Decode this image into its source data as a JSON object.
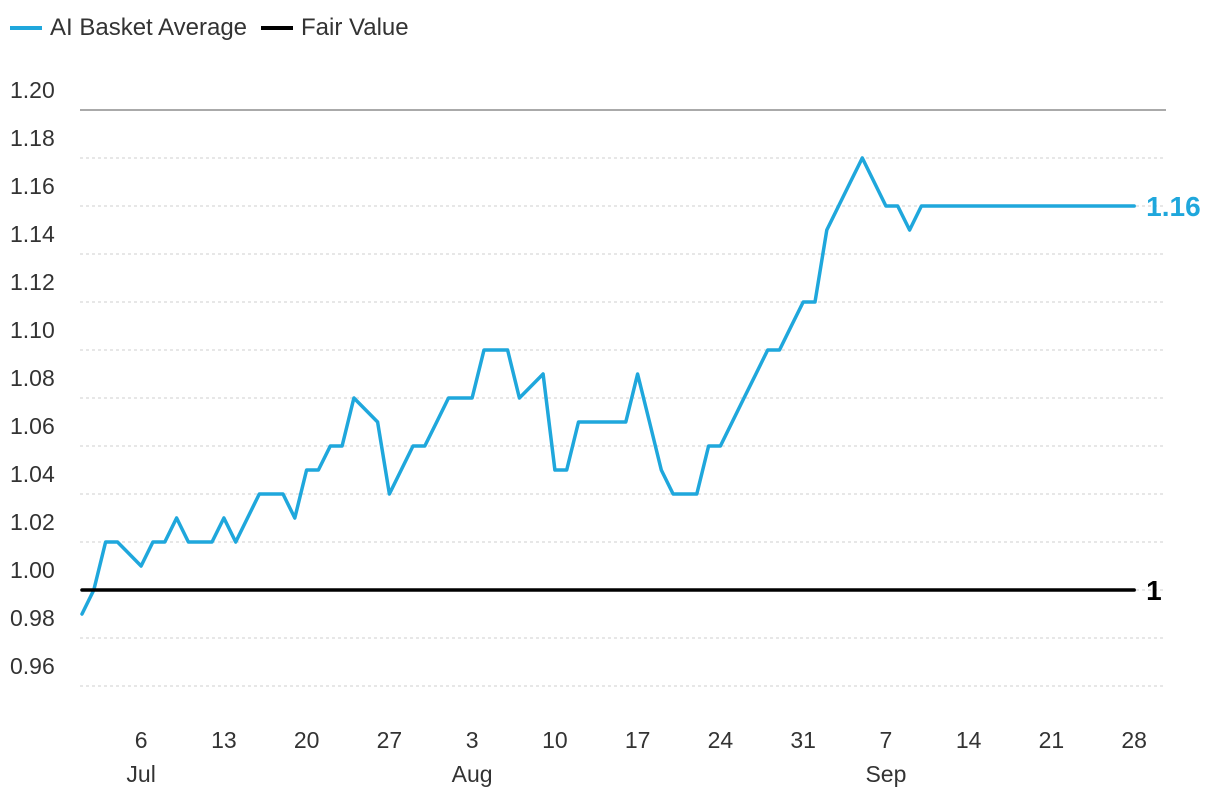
{
  "legend": {
    "items": [
      {
        "label": "AI Basket Average",
        "color": "#1fa7dc"
      },
      {
        "label": "Fair Value",
        "color": "#000000"
      }
    ]
  },
  "chart_data": {
    "type": "line",
    "title": "",
    "xlabel": "",
    "ylabel": "",
    "ylim": [
      0.95,
      1.2
    ],
    "yticks": [
      "1.20",
      "1.18",
      "1.16",
      "1.14",
      "1.12",
      "1.10",
      "1.08",
      "1.06",
      "1.04",
      "1.02",
      "1.00",
      "0.98",
      "0.96"
    ],
    "ytick_values": [
      1.2,
      1.18,
      1.16,
      1.14,
      1.12,
      1.1,
      1.08,
      1.06,
      1.04,
      1.02,
      1.0,
      0.98,
      0.96
    ],
    "xlim": [
      1,
      91
    ],
    "xticks": [
      {
        "day": 6,
        "label": "6"
      },
      {
        "day": 13,
        "label": "13"
      },
      {
        "day": 20,
        "label": "20"
      },
      {
        "day": 27,
        "label": "27"
      },
      {
        "day": 34,
        "label": "3"
      },
      {
        "day": 41,
        "label": "10"
      },
      {
        "day": 48,
        "label": "17"
      },
      {
        "day": 55,
        "label": "24"
      },
      {
        "day": 62,
        "label": "31"
      },
      {
        "day": 69,
        "label": "7"
      },
      {
        "day": 76,
        "label": "14"
      },
      {
        "day": 83,
        "label": "21"
      },
      {
        "day": 90,
        "label": "28"
      }
    ],
    "months": [
      {
        "day": 6,
        "label": "Jul"
      },
      {
        "day": 34,
        "label": "Aug"
      },
      {
        "day": 69,
        "label": "Sep"
      }
    ],
    "series": [
      {
        "name": "AI Basket Average",
        "color": "#1fa7dc",
        "end_label": "1.16",
        "x": [
          1,
          2,
          3,
          4,
          6,
          7,
          8,
          9,
          10,
          12,
          13,
          14,
          16,
          17,
          18,
          19,
          20,
          21,
          22,
          23,
          24,
          26,
          27,
          28,
          29,
          30,
          31,
          32,
          33,
          34,
          35,
          36,
          37,
          38,
          40,
          41,
          42,
          43,
          44,
          46,
          47,
          48,
          49,
          50,
          51,
          52,
          53,
          54,
          55,
          56,
          57,
          58,
          59,
          60,
          61,
          62,
          63,
          64,
          65,
          66,
          67,
          68,
          69,
          70,
          71,
          72,
          73,
          74,
          75,
          76,
          77,
          78,
          79,
          80,
          81,
          83,
          84,
          85,
          86,
          87,
          89,
          90
        ],
        "values": [
          0.99,
          1.0,
          1.02,
          1.02,
          1.01,
          1.02,
          1.02,
          1.03,
          1.02,
          1.02,
          1.03,
          1.02,
          1.04,
          1.04,
          1.04,
          1.03,
          1.05,
          1.05,
          1.06,
          1.06,
          1.08,
          1.07,
          1.04,
          1.05,
          1.06,
          1.06,
          1.07,
          1.08,
          1.08,
          1.08,
          1.1,
          1.1,
          1.1,
          1.08,
          1.09,
          1.05,
          1.05,
          1.07,
          1.07,
          1.07,
          1.07,
          1.09,
          1.07,
          1.05,
          1.04,
          1.04,
          1.04,
          1.06,
          1.06,
          1.07,
          1.08,
          1.09,
          1.1,
          1.1,
          1.11,
          1.12,
          1.12,
          1.15,
          1.16,
          1.17,
          1.18,
          1.17,
          1.16,
          1.16,
          1.15,
          1.16,
          1.16,
          1.16,
          1.16,
          1.16,
          1.16,
          1.16,
          1.16,
          1.16,
          1.16,
          1.16,
          1.16,
          1.16,
          1.16,
          1.16,
          1.16,
          1.16
        ]
      },
      {
        "name": "Fair Value",
        "color": "#000000",
        "end_label": "1",
        "x": [
          1,
          90
        ],
        "values": [
          1.0,
          1.0
        ]
      }
    ]
  }
}
